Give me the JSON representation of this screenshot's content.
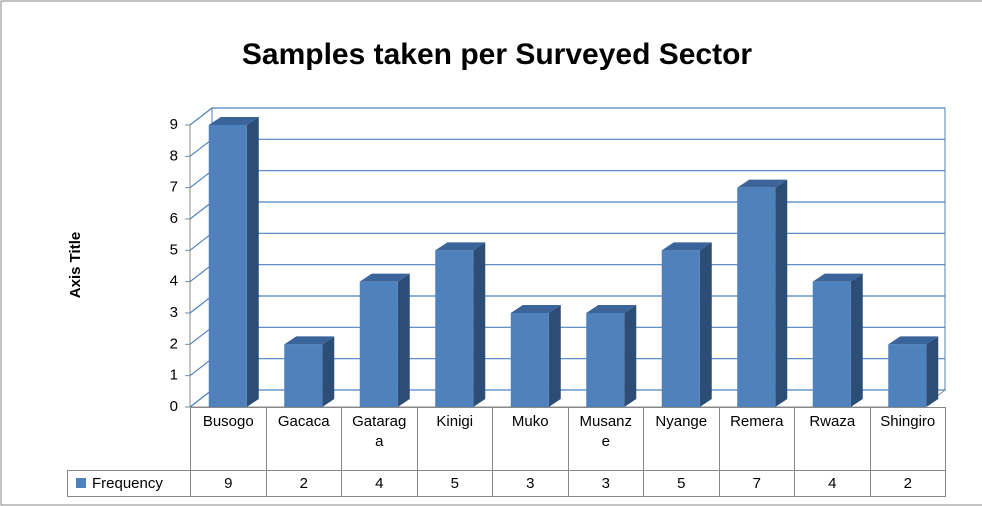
{
  "chart_data": {
    "type": "bar3d",
    "title": "Samples taken per Surveyed Sector",
    "y_label": "Axis Title",
    "categories": [
      "Busogo",
      "Gacaca",
      "Gataraga",
      "Kinigi",
      "Muko",
      "Musanze",
      "Nyange",
      "Remera",
      "Rwaza",
      "Shingiro"
    ],
    "series": [
      {
        "name": "Frequency",
        "color": "#4f81bd",
        "values": [
          9,
          2,
          4,
          5,
          3,
          3,
          5,
          7,
          4,
          2
        ]
      }
    ],
    "ylim": [
      0,
      9
    ],
    "yticks": [
      0,
      1,
      2,
      3,
      4,
      5,
      6,
      7,
      8,
      9
    ],
    "grid": true,
    "data_table": true
  }
}
